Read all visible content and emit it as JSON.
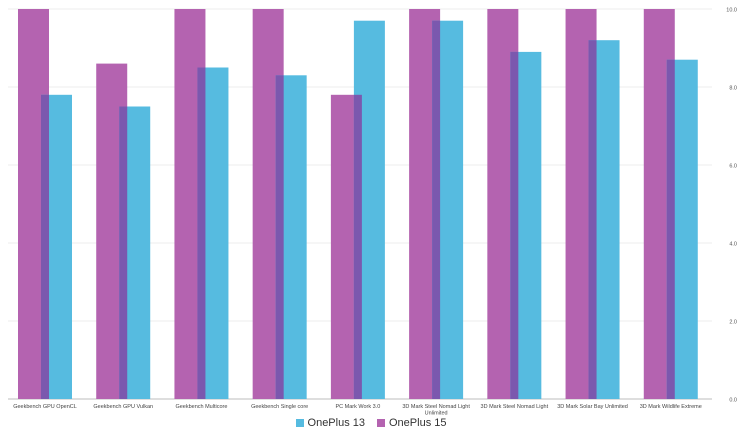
{
  "chart_data": {
    "type": "bar",
    "categories": [
      "Geekbench GPU OpenCL",
      "Geekbench GPU Vulkan",
      "Geekbench Multicore",
      "Geekbench Single core",
      "PC Mark Work 3.0",
      "3D Mark Steel Nomad Light Unlimited",
      "3D Mark Steel Nomad Light",
      "3D Mark Solar Bay Unlimited",
      "3D Mark Wildlife Extreme"
    ],
    "series": [
      {
        "name": "OnePlus 15",
        "color": "#b463b0",
        "values": [
          10.0,
          8.6,
          10.0,
          10.0,
          7.8,
          10.0,
          10.0,
          10.0,
          10.0
        ]
      },
      {
        "name": "OnePlus 13",
        "color": "#56bbe0",
        "values": [
          7.8,
          7.5,
          8.5,
          8.3,
          9.7,
          9.7,
          8.9,
          9.2,
          8.7
        ]
      }
    ],
    "yticks": [
      "0.0",
      "2.0",
      "4.0",
      "6.0",
      "8.0",
      "10.0"
    ],
    "ylim": [
      0,
      10
    ],
    "y_axis_side": "right",
    "legend": [
      {
        "name": "OnePlus 13",
        "color": "#56bbe0"
      },
      {
        "name": "OnePlus 15",
        "color": "#b463b0"
      }
    ],
    "legend_position": "bottom-center",
    "grid": true
  }
}
